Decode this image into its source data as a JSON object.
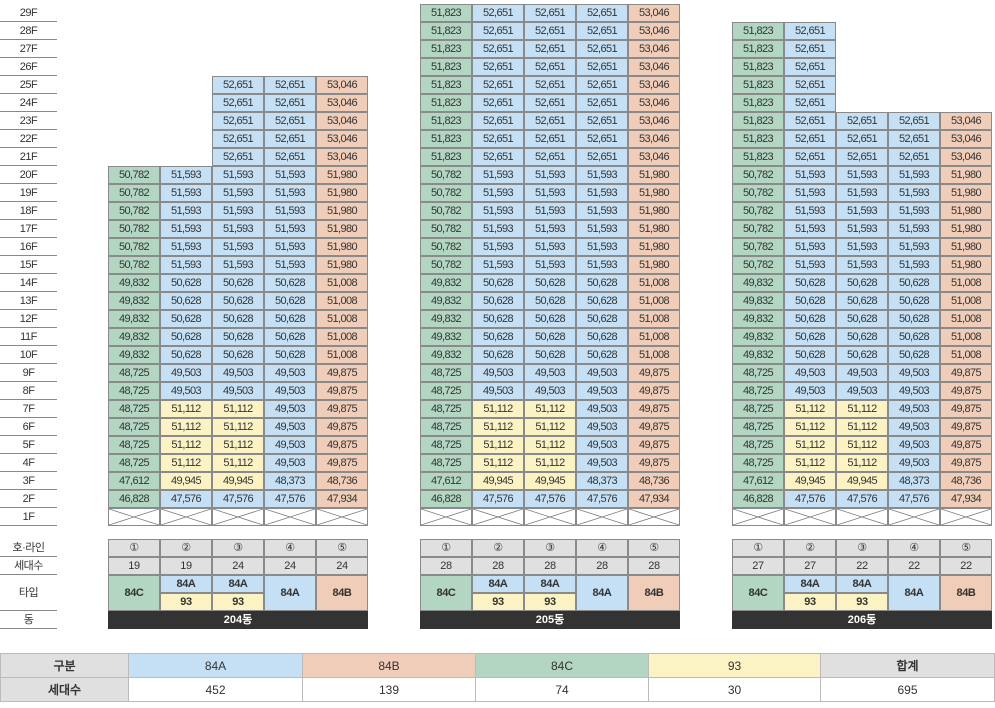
{
  "floors": [
    "29F",
    "28F",
    "27F",
    "26F",
    "25F",
    "24F",
    "23F",
    "22F",
    "21F",
    "20F",
    "19F",
    "18F",
    "17F",
    "16F",
    "15F",
    "14F",
    "13F",
    "12F",
    "11F",
    "10F",
    "9F",
    "8F",
    "7F",
    "6F",
    "5F",
    "4F",
    "3F",
    "2F",
    "1F"
  ],
  "row_labels": {
    "line": "호·라인",
    "households": "세대수",
    "type": "타입",
    "dong": "동"
  },
  "type_codes": {
    "A": "84A",
    "B": "84B",
    "C": "84C",
    "Y": "93"
  },
  "colors": {
    "84A": "#c5e0f4",
    "84B": "#f0cdb8",
    "84C": "#b3d6c3",
    "93": "#fbf3c4",
    "header": "#e0e0e0",
    "dong_bar": "#333333"
  },
  "buildings": [
    {
      "name": "204동",
      "lines": [
        "①",
        "②",
        "③",
        "④",
        "⑤"
      ],
      "households": [
        "19",
        "19",
        "24",
        "24",
        "24"
      ],
      "type_labels": [
        [
          "84C"
        ],
        [
          "84A",
          "93"
        ],
        [
          "84A",
          "93"
        ],
        [
          "84A"
        ],
        [
          "84B"
        ]
      ],
      "columns": [
        {
          "types": "CCCCCCCCCCCCCCCCCCC",
          "values": [
            "46,828",
            "47,612",
            "48,725",
            "48,725",
            "48,725",
            "48,725",
            "48,725",
            "48,725",
            "49,832",
            "49,832",
            "49,832",
            "49,832",
            "49,832",
            "50,782",
            "50,782",
            "50,782",
            "50,782",
            "50,782",
            "50,782"
          ]
        },
        {
          "types": "AYYYYYAAAAAAAAAAAAA",
          "values": [
            "47,576",
            "49,945",
            "51,112",
            "51,112",
            "51,112",
            "51,112",
            "49,503",
            "49,503",
            "50,628",
            "50,628",
            "50,628",
            "50,628",
            "50,628",
            "51,593",
            "51,593",
            "51,593",
            "51,593",
            "51,593",
            "51,593"
          ]
        },
        {
          "types": "AYYYYYAAAAAAAAAAAAAAAAAA",
          "values": [
            "47,576",
            "49,945",
            "51,112",
            "51,112",
            "51,112",
            "51,112",
            "49,503",
            "49,503",
            "50,628",
            "50,628",
            "50,628",
            "50,628",
            "50,628",
            "51,593",
            "51,593",
            "51,593",
            "51,593",
            "51,593",
            "51,593",
            "52,651",
            "52,651",
            "52,651",
            "52,651",
            "52,651"
          ]
        },
        {
          "types": "AAAAAAAAAAAAAAAAAAAAAAAA",
          "values": [
            "47,576",
            "48,373",
            "49,503",
            "49,503",
            "49,503",
            "49,503",
            "49,503",
            "49,503",
            "50,628",
            "50,628",
            "50,628",
            "50,628",
            "50,628",
            "51,593",
            "51,593",
            "51,593",
            "51,593",
            "51,593",
            "51,593",
            "52,651",
            "52,651",
            "52,651",
            "52,651",
            "52,651"
          ]
        },
        {
          "types": "BBBBBBBBBBBBBBBBBBBBBBBB",
          "values": [
            "47,934",
            "48,736",
            "49,875",
            "49,875",
            "49,875",
            "49,875",
            "49,875",
            "49,875",
            "51,008",
            "51,008",
            "51,008",
            "51,008",
            "51,008",
            "51,980",
            "51,980",
            "51,980",
            "51,980",
            "51,980",
            "51,980",
            "53,046",
            "53,046",
            "53,046",
            "53,046",
            "53,046"
          ]
        }
      ]
    },
    {
      "name": "205동",
      "lines": [
        "①",
        "②",
        "③",
        "④",
        "⑤"
      ],
      "households": [
        "28",
        "28",
        "28",
        "28",
        "28"
      ],
      "type_labels": [
        [
          "84C"
        ],
        [
          "84A",
          "93"
        ],
        [
          "84A",
          "93"
        ],
        [
          "84A"
        ],
        [
          "84B"
        ]
      ],
      "columns": [
        {
          "types": "CCCCCCCCCCCCCCCCCCCCCCCCCCCC",
          "values": [
            "46,828",
            "47,612",
            "48,725",
            "48,725",
            "48,725",
            "48,725",
            "48,725",
            "48,725",
            "49,832",
            "49,832",
            "49,832",
            "49,832",
            "49,832",
            "50,782",
            "50,782",
            "50,782",
            "50,782",
            "50,782",
            "50,782",
            "51,823",
            "51,823",
            "51,823",
            "51,823",
            "51,823",
            "51,823",
            "51,823",
            "51,823",
            "51,823"
          ]
        },
        {
          "types": "AYYYYYAAAAAAAAAAAAAAAAAAAAAA",
          "values": [
            "47,576",
            "49,945",
            "51,112",
            "51,112",
            "51,112",
            "51,112",
            "49,503",
            "49,503",
            "50,628",
            "50,628",
            "50,628",
            "50,628",
            "50,628",
            "51,593",
            "51,593",
            "51,593",
            "51,593",
            "51,593",
            "51,593",
            "52,651",
            "52,651",
            "52,651",
            "52,651",
            "52,651",
            "52,651",
            "52,651",
            "52,651",
            "52,651"
          ]
        },
        {
          "types": "AYYYYYAAAAAAAAAAAAAAAAAAAAAA",
          "values": [
            "47,576",
            "49,945",
            "51,112",
            "51,112",
            "51,112",
            "51,112",
            "49,503",
            "49,503",
            "50,628",
            "50,628",
            "50,628",
            "50,628",
            "50,628",
            "51,593",
            "51,593",
            "51,593",
            "51,593",
            "51,593",
            "51,593",
            "52,651",
            "52,651",
            "52,651",
            "52,651",
            "52,651",
            "52,651",
            "52,651",
            "52,651",
            "52,651"
          ]
        },
        {
          "types": "AAAAAAAAAAAAAAAAAAAAAAAAAAAA",
          "values": [
            "47,576",
            "48,373",
            "49,503",
            "49,503",
            "49,503",
            "49,503",
            "49,503",
            "49,503",
            "50,628",
            "50,628",
            "50,628",
            "50,628",
            "50,628",
            "51,593",
            "51,593",
            "51,593",
            "51,593",
            "51,593",
            "51,593",
            "52,651",
            "52,651",
            "52,651",
            "52,651",
            "52,651",
            "52,651",
            "52,651",
            "52,651",
            "52,651"
          ]
        },
        {
          "types": "BBBBBBBBBBBBBBBBBBBBBBBBBBBB",
          "values": [
            "47,934",
            "48,736",
            "49,875",
            "49,875",
            "49,875",
            "49,875",
            "49,875",
            "49,875",
            "51,008",
            "51,008",
            "51,008",
            "51,008",
            "51,008",
            "51,980",
            "51,980",
            "51,980",
            "51,980",
            "51,980",
            "51,980",
            "53,046",
            "53,046",
            "53,046",
            "53,046",
            "53,046",
            "53,046",
            "53,046",
            "53,046",
            "53,046"
          ]
        }
      ]
    },
    {
      "name": "206동",
      "lines": [
        "①",
        "②",
        "③",
        "④",
        "⑤"
      ],
      "households": [
        "27",
        "27",
        "22",
        "22",
        "22"
      ],
      "type_labels": [
        [
          "84C"
        ],
        [
          "84A",
          "93"
        ],
        [
          "84A",
          "93"
        ],
        [
          "84A"
        ],
        [
          "84B"
        ]
      ],
      "columns": [
        {
          "types": "CCCCCCCCCCCCCCCCCCCCCCCCCCC",
          "values": [
            "46,828",
            "47,612",
            "48,725",
            "48,725",
            "48,725",
            "48,725",
            "48,725",
            "48,725",
            "49,832",
            "49,832",
            "49,832",
            "49,832",
            "49,832",
            "50,782",
            "50,782",
            "50,782",
            "50,782",
            "50,782",
            "50,782",
            "51,823",
            "51,823",
            "51,823",
            "51,823",
            "51,823",
            "51,823",
            "51,823",
            "51,823"
          ]
        },
        {
          "types": "AYYYYYAAAAAAAAAAAAAAAAAAAAA",
          "values": [
            "47,576",
            "49,945",
            "51,112",
            "51,112",
            "51,112",
            "51,112",
            "49,503",
            "49,503",
            "50,628",
            "50,628",
            "50,628",
            "50,628",
            "50,628",
            "51,593",
            "51,593",
            "51,593",
            "51,593",
            "51,593",
            "51,593",
            "52,651",
            "52,651",
            "52,651",
            "52,651",
            "52,651",
            "52,651",
            "52,651",
            "52,651"
          ]
        },
        {
          "types": "AYYYYYAAAAAAAAAAAAAAAA",
          "values": [
            "47,576",
            "49,945",
            "51,112",
            "51,112",
            "51,112",
            "51,112",
            "49,503",
            "49,503",
            "50,628",
            "50,628",
            "50,628",
            "50,628",
            "50,628",
            "51,593",
            "51,593",
            "51,593",
            "51,593",
            "51,593",
            "51,593",
            "52,651",
            "52,651",
            "52,651"
          ]
        },
        {
          "types": "AAAAAAAAAAAAAAAAAAAAAA",
          "values": [
            "47,576",
            "48,373",
            "49,503",
            "49,503",
            "49,503",
            "49,503",
            "49,503",
            "49,503",
            "50,628",
            "50,628",
            "50,628",
            "50,628",
            "50,628",
            "51,593",
            "51,593",
            "51,593",
            "51,593",
            "51,593",
            "51,593",
            "52,651",
            "52,651",
            "52,651"
          ]
        },
        {
          "types": "BBBBBBBBBBBBBBBBBBBBBB",
          "values": [
            "47,934",
            "48,736",
            "49,875",
            "49,875",
            "49,875",
            "49,875",
            "49,875",
            "49,875",
            "51,008",
            "51,008",
            "51,008",
            "51,008",
            "51,008",
            "51,980",
            "51,980",
            "51,980",
            "51,980",
            "51,980",
            "51,980",
            "53,046",
            "53,046",
            "53,046"
          ]
        }
      ]
    }
  ],
  "summary": {
    "header": [
      "구분",
      "84A",
      "84B",
      "84C",
      "93",
      "합계"
    ],
    "row": [
      "세대수",
      "452",
      "139",
      "74",
      "30",
      "695"
    ]
  }
}
